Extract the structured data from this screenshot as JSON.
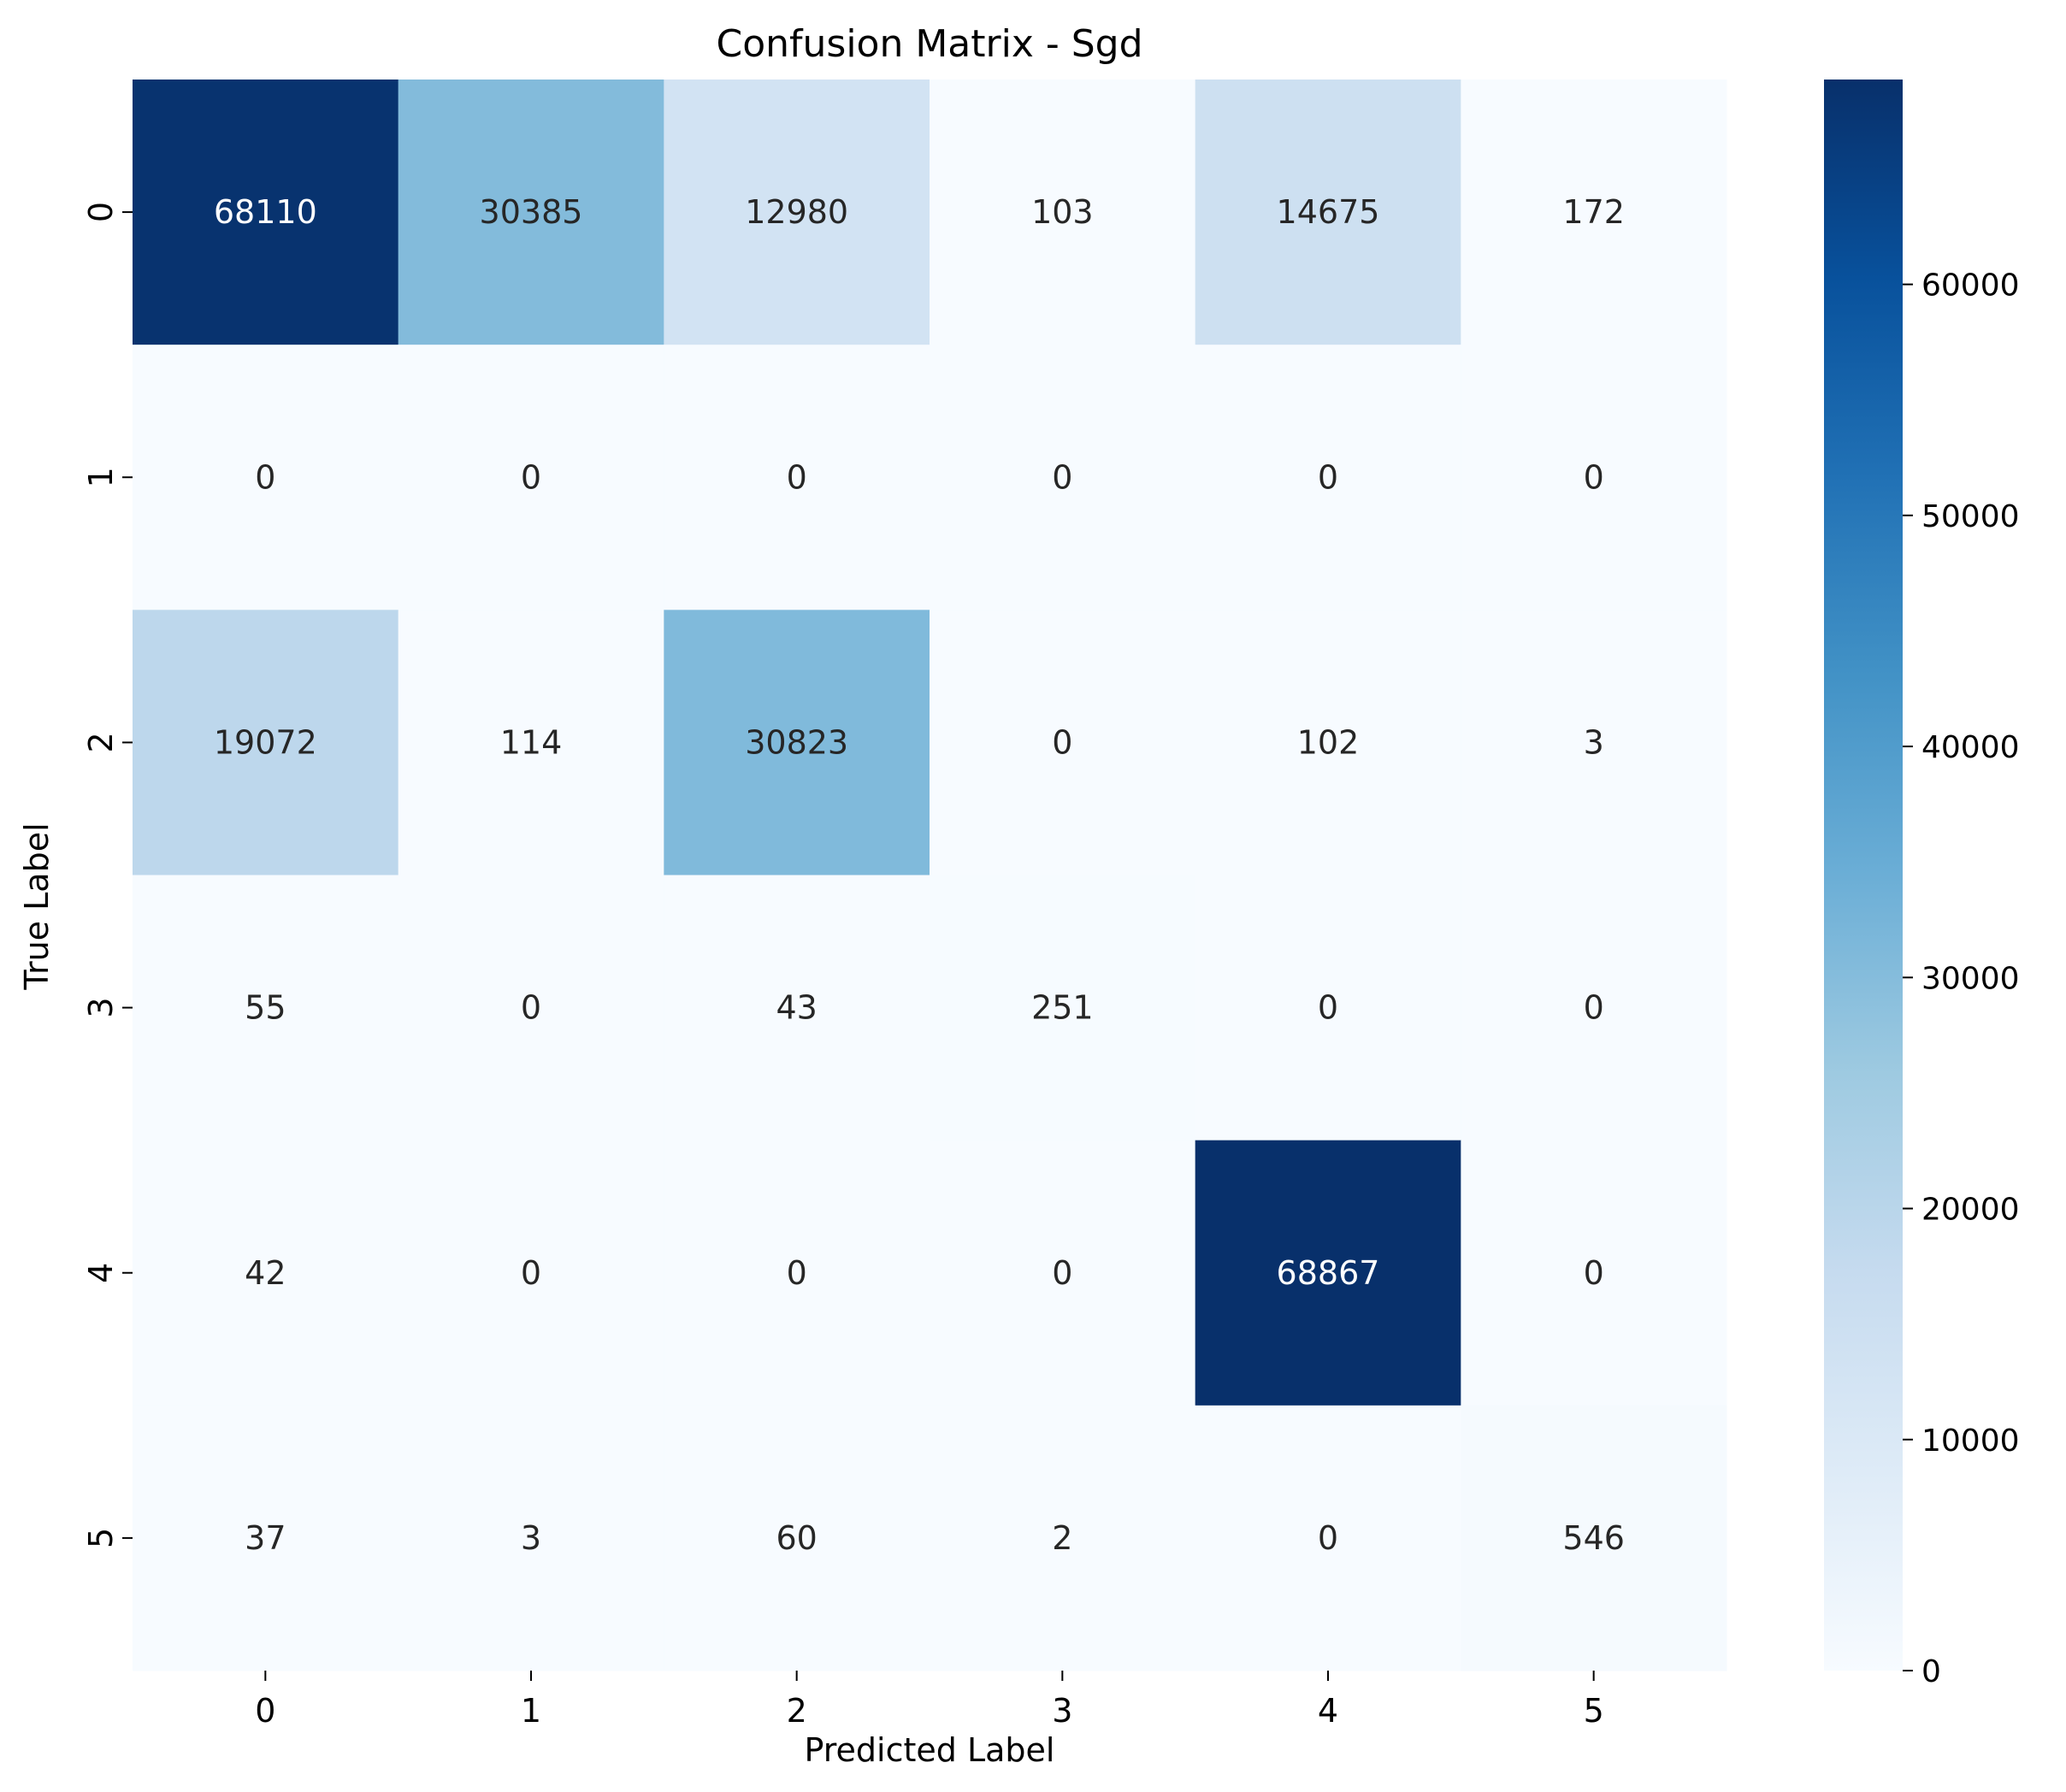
{
  "chart_data": {
    "type": "heatmap",
    "title": "Confusion Matrix - Sgd",
    "xlabel": "Predicted Label",
    "ylabel": "True Label",
    "x_categories": [
      "0",
      "1",
      "2",
      "3",
      "4",
      "5"
    ],
    "y_categories": [
      "0",
      "1",
      "2",
      "3",
      "4",
      "5"
    ],
    "values": [
      [
        68110,
        30385,
        12980,
        103,
        14675,
        172
      ],
      [
        0,
        0,
        0,
        0,
        0,
        0
      ],
      [
        19072,
        114,
        30823,
        0,
        102,
        3
      ],
      [
        55,
        0,
        43,
        251,
        0,
        0
      ],
      [
        42,
        0,
        0,
        0,
        68867,
        0
      ],
      [
        37,
        3,
        60,
        2,
        0,
        546
      ]
    ],
    "colorbar": {
      "min": 0,
      "max": 68867,
      "ticks": [
        0,
        10000,
        20000,
        30000,
        40000,
        50000,
        60000
      ],
      "colormap": "Blues"
    },
    "grid": false,
    "legend": "colorbar-right"
  },
  "colors": {
    "cmap_stops": [
      "#f7fbff",
      "#deebf7",
      "#c6dbef",
      "#9ecae1",
      "#6baed6",
      "#4292c6",
      "#2171b5",
      "#08519c",
      "#08306b"
    ],
    "text_dark": "#262626",
    "text_light": "#ffffff"
  }
}
